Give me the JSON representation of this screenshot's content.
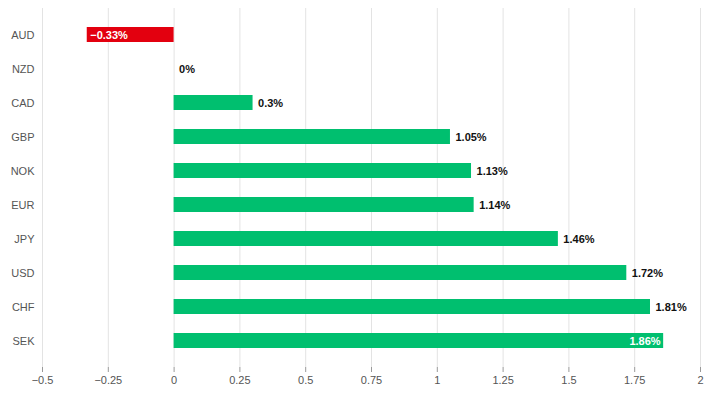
{
  "chart_data": {
    "type": "bar",
    "orientation": "horizontal",
    "categories": [
      "AUD",
      "NZD",
      "CAD",
      "GBP",
      "NOK",
      "EUR",
      "JPY",
      "USD",
      "CHF",
      "SEK"
    ],
    "values": [
      -0.33,
      0,
      0.3,
      1.05,
      1.13,
      1.14,
      1.46,
      1.72,
      1.81,
      1.86
    ],
    "value_labels": [
      "−0.33%",
      "0%",
      "0.3%",
      "1.05%",
      "1.13%",
      "1.14%",
      "1.46%",
      "1.72%",
      "1.81%",
      "1.86%"
    ],
    "colors": [
      "#e3000f",
      "#00bf6f",
      "#00bf6f",
      "#00bf6f",
      "#00bf6f",
      "#00bf6f",
      "#00bf6f",
      "#00bf6f",
      "#00bf6f",
      "#00bf6f"
    ],
    "xlim": [
      -0.5,
      2
    ],
    "xticks": [
      {
        "value": -0.5,
        "label": "−0.5"
      },
      {
        "value": -0.25,
        "label": "−0.25"
      },
      0,
      0.25,
      0.5,
      0.75,
      1,
      1.25,
      1.5,
      1.75,
      2
    ],
    "grid": true,
    "data_labels": true
  }
}
